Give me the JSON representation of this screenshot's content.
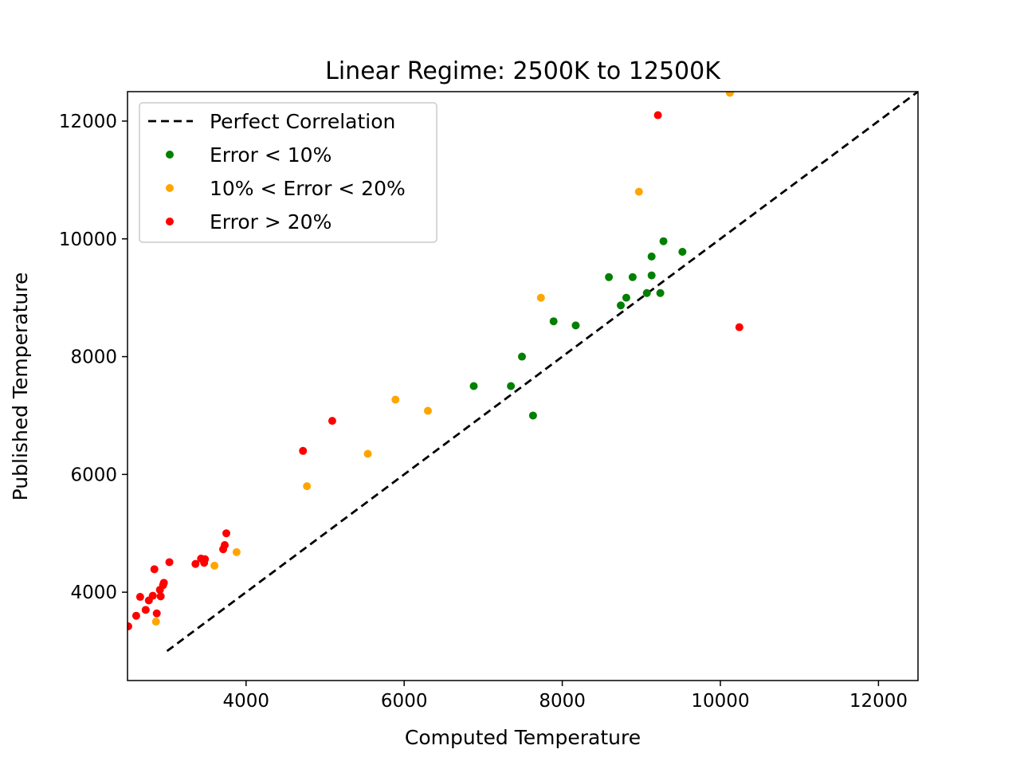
{
  "chart_data": {
    "type": "scatter",
    "title": "Linear Regime: 2500K to 12500K",
    "xlabel": "Computed Temperature",
    "ylabel": "Published Temperature",
    "xlim": [
      2500,
      12500
    ],
    "ylim": [
      2500,
      12500
    ],
    "xticks": [
      4000,
      6000,
      8000,
      10000,
      12000
    ],
    "yticks": [
      4000,
      6000,
      8000,
      10000,
      12000
    ],
    "xtick_labels": [
      "4000",
      "6000",
      "8000",
      "10000",
      "12000"
    ],
    "ytick_labels": [
      "4000",
      "6000",
      "8000",
      "10000",
      "12000"
    ],
    "grid": false,
    "legend_position": "upper-left",
    "perfect_line": {
      "name": "Perfect Correlation",
      "color": "#000000",
      "style": "dashed",
      "x": [
        3000,
        12500
      ],
      "y": [
        3000,
        12500
      ]
    },
    "series": [
      {
        "name": "Error < 10%",
        "color": "#008000",
        "points": [
          [
            6880,
            7500
          ],
          [
            7350,
            7500
          ],
          [
            7490,
            8000
          ],
          [
            7630,
            7000
          ],
          [
            7890,
            8600
          ],
          [
            8170,
            8530
          ],
          [
            8590,
            9350
          ],
          [
            8740,
            8870
          ],
          [
            8810,
            9000
          ],
          [
            8890,
            9350
          ],
          [
            9070,
            9080
          ],
          [
            9130,
            9380
          ],
          [
            9130,
            9700
          ],
          [
            9240,
            9080
          ],
          [
            9280,
            9960
          ],
          [
            9520,
            9780
          ]
        ]
      },
      {
        "name": "10% < Error < 20%",
        "color": "#FFA500",
        "points": [
          [
            2860,
            3500
          ],
          [
            3600,
            4450
          ],
          [
            3880,
            4680
          ],
          [
            4770,
            5800
          ],
          [
            5540,
            6350
          ],
          [
            5890,
            7270
          ],
          [
            6300,
            7080
          ],
          [
            7730,
            9000
          ],
          [
            8970,
            10800
          ],
          [
            10120,
            12480
          ]
        ]
      },
      {
        "name": "Error > 20%",
        "color": "#FF0000",
        "points": [
          [
            2510,
            3420
          ],
          [
            2610,
            3600
          ],
          [
            2660,
            3920
          ],
          [
            2730,
            3700
          ],
          [
            2770,
            3860
          ],
          [
            2820,
            3940
          ],
          [
            2840,
            4390
          ],
          [
            2870,
            3640
          ],
          [
            2910,
            4040
          ],
          [
            2920,
            3930
          ],
          [
            2950,
            4120
          ],
          [
            2960,
            4160
          ],
          [
            3030,
            4510
          ],
          [
            3360,
            4480
          ],
          [
            3430,
            4570
          ],
          [
            3470,
            4500
          ],
          [
            3480,
            4560
          ],
          [
            3710,
            4730
          ],
          [
            3730,
            4800
          ],
          [
            3750,
            5000
          ],
          [
            4720,
            6400
          ],
          [
            5090,
            6910
          ],
          [
            9210,
            12100
          ],
          [
            10240,
            8500
          ]
        ]
      }
    ]
  }
}
